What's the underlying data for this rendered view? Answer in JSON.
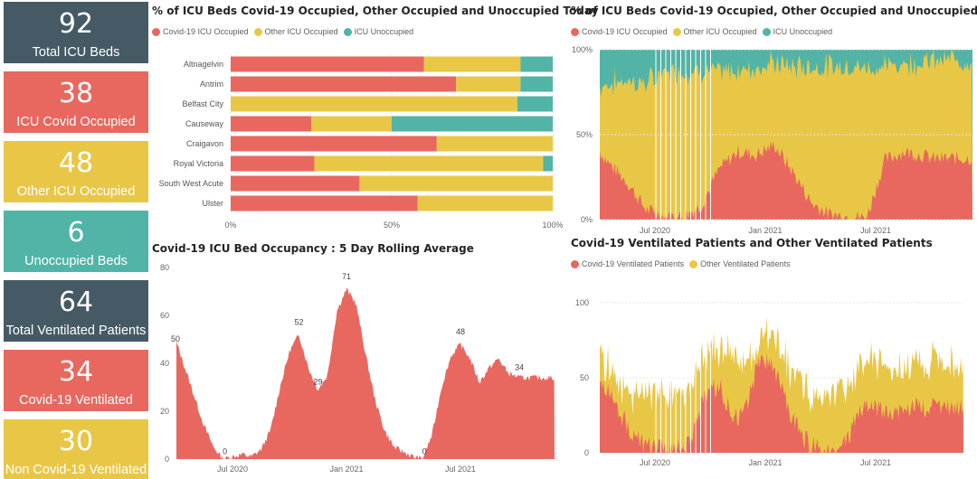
{
  "colors": {
    "red": "#E8685F",
    "yellow": "#E9C746",
    "teal": "#51B4A6",
    "slate": "#455A64",
    "grid": "#e6e6e6",
    "axis": "#777777"
  },
  "kpis": [
    {
      "value": "92",
      "label": "Total ICU Beds",
      "color": "#455A64"
    },
    {
      "value": "38",
      "label": "ICU Covid Occupied",
      "color": "#E8685F"
    },
    {
      "value": "48",
      "label": "Other ICU Occupied",
      "color": "#E9C746"
    },
    {
      "value": "6",
      "label": "Unoccupied Beds",
      "color": "#51B4A6"
    },
    {
      "value": "64",
      "label": "Total Ventilated Patients",
      "color": "#455A64"
    },
    {
      "value": "34",
      "label": "Covid-19 Ventilated",
      "color": "#E8685F"
    },
    {
      "value": "30",
      "label": "Non Covid-19 Ventilated",
      "color": "#E9C746"
    }
  ],
  "legend_labels": {
    "icu_covid": "Covid-19 ICU Occupied",
    "icu_other": "Other ICU Occupied",
    "icu_unocc": "ICU Unoccupied",
    "vent_covid": "Covid-19 Ventilated Patients",
    "vent_other": "Other Ventilated Patients"
  },
  "chart_data": [
    {
      "type": "bar",
      "stacked": "100%",
      "orientation": "horizontal",
      "title": "% of ICU Beds Covid-19 Occupied, Other Occupied and Unoccupied Today",
      "categories": [
        "Altnagelvin",
        "Antrim",
        "Belfast City",
        "Causeway",
        "Craigavon",
        "Royal Victoria",
        "South West Acute",
        "Ulster"
      ],
      "series": [
        {
          "name": "Covid-19 ICU Occupied",
          "color": "#E8685F",
          "values": [
            60,
            70,
            0,
            25,
            64,
            26,
            40,
            58
          ]
        },
        {
          "name": "Other ICU Occupied",
          "color": "#E9C746",
          "values": [
            30,
            20,
            89,
            25,
            36,
            71,
            60,
            42
          ]
        },
        {
          "name": "ICU Unoccupied",
          "color": "#51B4A6",
          "values": [
            10,
            10,
            11,
            50,
            0,
            3,
            0,
            0
          ]
        }
      ],
      "x_ticks": [
        "0%",
        "50%",
        "100%"
      ],
      "xlim": [
        0,
        100
      ],
      "grid": true,
      "legend": "top-left"
    },
    {
      "type": "area",
      "stacked": "100%",
      "title": "% of ICU Beds Covid-19 Occupied, Other Occupied and Unoccupied",
      "x_ticks": [
        "Jul 2020",
        "Jan 2021",
        "Jul 2021"
      ],
      "y_ticks": [
        "0%",
        "50%",
        "100%"
      ],
      "ylim": [
        0,
        100
      ],
      "x_months": [
        3.5,
        4,
        5,
        6,
        7,
        8,
        9,
        10,
        11,
        12,
        13,
        14,
        15,
        16,
        17,
        18,
        19,
        20,
        21,
        21.6
      ],
      "series": [
        {
          "name": "Covid-19 ICU Occupied",
          "color": "#E8685F",
          "values": [
            40,
            33,
            22,
            6,
            2,
            2,
            8,
            30,
            40,
            38,
            44,
            28,
            10,
            3,
            2,
            1,
            35,
            40,
            38,
            36
          ]
        },
        {
          "name": "Other ICU Occupied",
          "color": "#E9C746",
          "values": [
            38,
            47,
            60,
            74,
            84,
            85,
            80,
            56,
            48,
            52,
            48,
            62,
            80,
            87,
            88,
            88,
            55,
            52,
            55,
            58
          ]
        },
        {
          "name": "ICU Unoccupied",
          "color": "#51B4A6",
          "values": [
            22,
            20,
            18,
            20,
            14,
            13,
            12,
            14,
            12,
            10,
            8,
            10,
            10,
            10,
            10,
            11,
            10,
            8,
            7,
            6
          ]
        }
      ],
      "grid": true,
      "legend": "top-left"
    },
    {
      "type": "area",
      "title": "Covid-19 ICU Bed Occupancy : 5 Day Rolling Average",
      "x_ticks": [
        "Jul 2020",
        "Jan 2021",
        "Jul 2021"
      ],
      "y_ticks": [
        "0",
        "20",
        "40",
        "60",
        "80"
      ],
      "ylim": [
        0,
        80
      ],
      "x_months": [
        3.5,
        4,
        4.5,
        5,
        5.5,
        6,
        6.5,
        7,
        7.5,
        8,
        8.5,
        9,
        9.5,
        10,
        10.5,
        11,
        11.5,
        12,
        12.5,
        13,
        13.5,
        14,
        14.5,
        15,
        15.5,
        16,
        16.5,
        17,
        17.5,
        18,
        18.5,
        19,
        19.5,
        20,
        20.5,
        21,
        21.6
      ],
      "series": [
        {
          "name": "Covid-19 ICU Occupied",
          "color": "#E8685F",
          "values": [
            50,
            38,
            26,
            14,
            5,
            0,
            1,
            2,
            1,
            4,
            12,
            30,
            45,
            52,
            38,
            29,
            35,
            62,
            71,
            65,
            44,
            25,
            12,
            5,
            3,
            1,
            0,
            10,
            30,
            43,
            48,
            42,
            32,
            38,
            42,
            36,
            34
          ]
        }
      ],
      "data_labels": [
        {
          "text": "50",
          "x_month": 3.5,
          "y": 48
        },
        {
          "text": "0",
          "x_month": 6.1,
          "y": 1
        },
        {
          "text": "52",
          "x_month": 10,
          "y": 55
        },
        {
          "text": "29",
          "x_month": 11,
          "y": 30
        },
        {
          "text": "71",
          "x_month": 12.5,
          "y": 74
        },
        {
          "text": "0",
          "x_month": 16.6,
          "y": 1
        },
        {
          "text": "48",
          "x_month": 18.5,
          "y": 51
        },
        {
          "text": "34",
          "x_month": 21.6,
          "y": 36
        }
      ],
      "grid": false
    },
    {
      "type": "area",
      "stacked": true,
      "title": "Covid-19 Ventilated Patients and Other Ventilated Patients",
      "x_ticks": [
        "Jul 2020",
        "Jan 2021",
        "Jul 2021"
      ],
      "y_ticks": [
        "0",
        "50",
        "100"
      ],
      "ylim": [
        0,
        115
      ],
      "x_months": [
        3.5,
        4,
        4.5,
        5,
        5.5,
        6,
        6.5,
        7,
        7.5,
        8,
        8.5,
        9,
        9.5,
        10,
        10.5,
        11,
        11.5,
        12,
        12.5,
        13,
        13.5,
        14,
        14.5,
        15,
        15.5,
        16,
        16.5,
        17,
        17.5,
        18,
        18.5,
        19,
        19.5,
        20,
        20.5,
        21,
        21.6
      ],
      "series": [
        {
          "name": "Covid-19 Ventilated Patients",
          "color": "#E8685F",
          "values": [
            48,
            40,
            30,
            18,
            10,
            4,
            3,
            2,
            2,
            3,
            12,
            30,
            42,
            45,
            30,
            22,
            32,
            55,
            62,
            55,
            40,
            22,
            10,
            5,
            2,
            2,
            1,
            8,
            25,
            30,
            30,
            28,
            26,
            30,
            32,
            30,
            30
          ]
        },
        {
          "name": "Other Ventilated Patients",
          "color": "#E9C746",
          "values": [
            15,
            18,
            18,
            25,
            28,
            32,
            35,
            36,
            35,
            35,
            35,
            28,
            25,
            25,
            42,
            38,
            28,
            10,
            20,
            20,
            28,
            30,
            35,
            32,
            35,
            35,
            40,
            32,
            28,
            32,
            32,
            30,
            26,
            28,
            28,
            28,
            30
          ]
        }
      ],
      "grid": true,
      "legend": "top-left"
    }
  ]
}
